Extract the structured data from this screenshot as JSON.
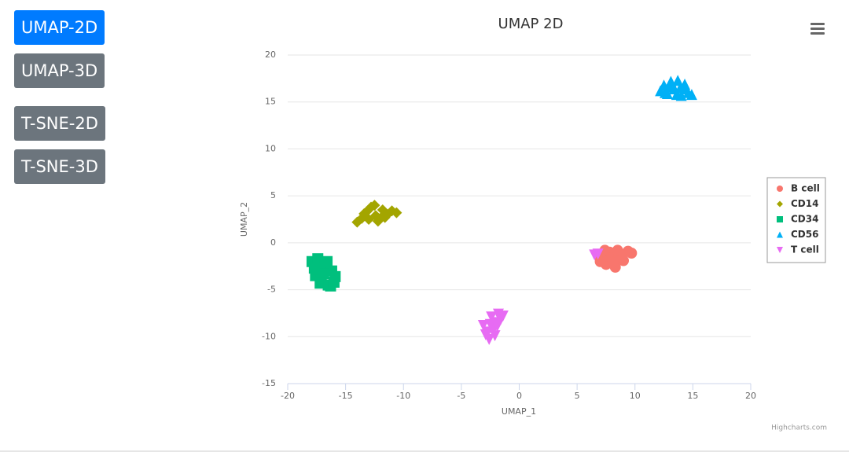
{
  "buttons": [
    "UMAP-2D",
    "UMAP-3D",
    "T-SNE-2D",
    "T-SNE-3D"
  ],
  "credits": "Highcharts.com",
  "chart_data": {
    "type": "scatter",
    "title": "UMAP 2D",
    "x_label": "UMAP_1",
    "y_label": "UMAP_2",
    "xlim": [
      -20,
      20
    ],
    "xticks": [
      -20,
      -15,
      -10,
      -5,
      0,
      5,
      10,
      15,
      20
    ],
    "ylim": [
      -15,
      20
    ],
    "yticks": [
      -15,
      -10,
      -5,
      0,
      5,
      10,
      15,
      20
    ],
    "grid": true,
    "legend": "right",
    "series": [
      {
        "name": "B cell",
        "color": "#f8766d",
        "marker": "circle",
        "x": [
          6.8,
          7.2,
          7.5,
          7.8,
          8.0,
          8.3,
          8.6,
          9.0,
          9.4,
          9.7,
          7.4,
          8.1,
          8.8,
          7.0,
          8.5
        ],
        "y": [
          -1.3,
          -1.8,
          -2.3,
          -1.0,
          -1.6,
          -2.6,
          -1.2,
          -1.9,
          -0.9,
          -1.1,
          -0.8,
          -2.1,
          -1.5,
          -2.0,
          -0.8
        ]
      },
      {
        "name": "CD14",
        "color": "#a3a500",
        "marker": "diamond",
        "x": [
          -14.0,
          -13.6,
          -13.2,
          -12.8,
          -12.5,
          -12.2,
          -11.8,
          -11.4,
          -11.0,
          -10.6,
          -13.0,
          -12.4,
          -12.0,
          -13.4,
          -11.6
        ],
        "y": [
          2.2,
          2.6,
          3.3,
          3.8,
          4.0,
          2.3,
          3.5,
          3.0,
          3.4,
          3.2,
          2.5,
          2.9,
          2.6,
          3.1,
          2.7
        ]
      },
      {
        "name": "CD34",
        "color": "#00bf7d",
        "marker": "square",
        "x": [
          -17.9,
          -17.6,
          -17.4,
          -17.1,
          -16.8,
          -16.5,
          -16.2,
          -15.9,
          -17.5,
          -16.9,
          -17.2,
          -16.6,
          -16.3,
          -17.7,
          -16.0
        ],
        "y": [
          -2.0,
          -3.5,
          -1.7,
          -4.0,
          -2.4,
          -4.5,
          -3.0,
          -3.6,
          -2.8,
          -3.3,
          -4.3,
          -2.0,
          -4.6,
          -2.7,
          -4.2
        ]
      },
      {
        "name": "CD56",
        "color": "#00b0f6",
        "marker": "triangle",
        "x": [
          12.2,
          12.5,
          12.8,
          13.1,
          13.4,
          13.7,
          14.0,
          14.3,
          14.6,
          14.9,
          13.0,
          13.6,
          13.9,
          12.6,
          14.4
        ],
        "y": [
          16.2,
          16.8,
          15.9,
          17.2,
          16.4,
          17.3,
          15.7,
          16.9,
          16.0,
          15.8,
          16.6,
          15.8,
          16.5,
          16.0,
          16.4
        ]
      },
      {
        "name": "T cell",
        "color": "#e76bf3",
        "marker": "triangle-down",
        "x": [
          -3.1,
          -2.9,
          -2.6,
          -2.4,
          -2.2,
          -2.0,
          -1.8,
          -1.6,
          -1.4,
          -2.7,
          -2.1,
          -2.5,
          -1.9,
          6.5,
          6.8
        ],
        "y": [
          -8.8,
          -9.8,
          -10.3,
          -7.9,
          -9.2,
          -8.5,
          -7.6,
          -8.2,
          -7.8,
          -9.5,
          -9.9,
          -8.7,
          -8.9,
          -1.3,
          -1.2
        ]
      }
    ]
  }
}
